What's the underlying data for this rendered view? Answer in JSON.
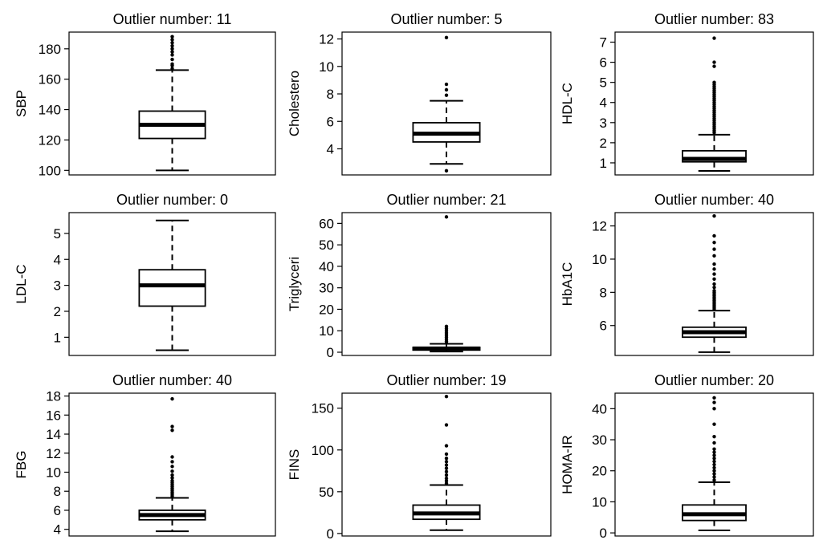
{
  "chart_data": [
    {
      "type": "box",
      "title": "Outlier number: 11",
      "ylabel": "SBP",
      "ylim": [
        97,
        191
      ],
      "yticks": [
        100,
        120,
        140,
        160,
        180
      ],
      "box": {
        "min": 100,
        "q1": 121,
        "median": 130,
        "q3": 139,
        "max": 166
      },
      "outliers": [
        167,
        169,
        170,
        173,
        176,
        178,
        180,
        182,
        184,
        186,
        188
      ]
    },
    {
      "type": "box",
      "title": "Outlier number: 5",
      "ylabel": "Cholestero",
      "ylim": [
        2.1,
        12.5
      ],
      "yticks": [
        4,
        6,
        8,
        10,
        12
      ],
      "box": {
        "min": 2.9,
        "q1": 4.5,
        "median": 5.1,
        "q3": 5.9,
        "max": 7.5
      },
      "outliers": [
        2.4,
        7.9,
        8.3,
        8.7,
        12.1
      ]
    },
    {
      "type": "box",
      "title": "Outlier number: 83",
      "ylabel": "HDL-C",
      "ylim": [
        0.4,
        7.5
      ],
      "yticks": [
        1,
        2,
        3,
        4,
        5,
        6,
        7
      ],
      "box": {
        "min": 0.6,
        "q1": 1.05,
        "median": 1.2,
        "q3": 1.6,
        "max": 2.4
      },
      "outliers": [
        2.5,
        2.6,
        2.7,
        2.8,
        2.9,
        3.0,
        3.1,
        3.2,
        3.3,
        3.4,
        3.5,
        3.6,
        3.7,
        3.8,
        3.9,
        4.0,
        4.1,
        4.2,
        4.3,
        4.4,
        4.5,
        4.6,
        4.7,
        4.8,
        4.9,
        5.0,
        5.8,
        6.0,
        7.2
      ]
    },
    {
      "type": "box",
      "title": "Outlier number: 0",
      "ylabel": "LDL-C",
      "ylim": [
        0.3,
        5.8
      ],
      "yticks": [
        1,
        2,
        3,
        4,
        5
      ],
      "box": {
        "min": 0.5,
        "q1": 2.2,
        "median": 3.0,
        "q3": 3.6,
        "max": 5.5
      },
      "outliers": []
    },
    {
      "type": "box",
      "title": "Outlier number: 21",
      "ylabel": "Triglyceri",
      "ylim": [
        -1.5,
        65
      ],
      "yticks": [
        0,
        10,
        20,
        30,
        40,
        50,
        60
      ],
      "box": {
        "min": 0.3,
        "q1": 1.0,
        "median": 1.7,
        "q3": 2.3,
        "max": 3.9
      },
      "outliers": [
        4.2,
        5,
        6,
        7,
        8,
        9,
        10,
        11,
        12,
        63
      ]
    },
    {
      "type": "box",
      "title": "Outlier number: 40",
      "ylabel": "HbA1C",
      "ylim": [
        4.2,
        12.8
      ],
      "yticks": [
        6,
        8,
        10,
        12
      ],
      "box": {
        "min": 4.4,
        "q1": 5.3,
        "median": 5.6,
        "q3": 5.9,
        "max": 6.9
      },
      "outliers": [
        7.0,
        7.1,
        7.2,
        7.3,
        7.4,
        7.5,
        7.6,
        7.7,
        7.8,
        7.9,
        8.0,
        8.1,
        8.3,
        8.5,
        8.8,
        9.1,
        9.4,
        9.7,
        10.2,
        10.6,
        11.0,
        11.4,
        12.6
      ]
    },
    {
      "type": "box",
      "title": "Outlier number: 40",
      "ylabel": "FBG",
      "ylim": [
        3.3,
        18.3
      ],
      "yticks": [
        4,
        6,
        8,
        10,
        12,
        14,
        16,
        18
      ],
      "box": {
        "min": 3.8,
        "q1": 5.0,
        "median": 5.5,
        "q3": 6.0,
        "max": 7.3
      },
      "outliers": [
        7.5,
        7.7,
        7.9,
        8.1,
        8.3,
        8.5,
        8.7,
        8.9,
        9.1,
        9.4,
        9.7,
        10.1,
        10.6,
        11.1,
        11.6,
        14.4,
        14.8,
        17.7
      ]
    },
    {
      "type": "box",
      "title": "Outlier number: 19",
      "ylabel": "FINS",
      "ylim": [
        -3,
        168
      ],
      "yticks": [
        0,
        50,
        100,
        150
      ],
      "box": {
        "min": 4,
        "q1": 17,
        "median": 24,
        "q3": 34,
        "max": 58
      },
      "outliers": [
        60,
        63,
        66,
        70,
        74,
        78,
        82,
        86,
        90,
        95,
        105,
        130,
        164
      ]
    },
    {
      "type": "box",
      "title": "Outlier number: 20",
      "ylabel": "HOMA-IR",
      "ylim": [
        -1,
        45
      ],
      "yticks": [
        0,
        10,
        20,
        30,
        40
      ],
      "box": {
        "min": 0.8,
        "q1": 4,
        "median": 6,
        "q3": 9,
        "max": 16.3
      },
      "outliers": [
        17,
        18,
        19,
        20,
        21,
        22,
        23,
        24,
        25,
        26,
        27,
        29,
        31,
        35,
        40,
        42,
        43.5
      ]
    }
  ]
}
